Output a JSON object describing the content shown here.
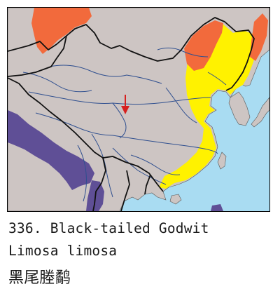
{
  "caption": {
    "number_name": "336. Black-tailed Godwit",
    "scientific_name": "Limosa limosa",
    "chinese_name": "黑尾塍鹬"
  },
  "colors": {
    "sea": "#a9dcf2",
    "land": "#cdc5c3",
    "breeding_range": "#f26a3c",
    "migration_range": "#fff200",
    "wintering_range": "#5f4f96",
    "rivers": "#2f4f8f",
    "borders": "#111111",
    "marker": "#d6201f"
  },
  "legend_semantics": [
    "breeding-range",
    "migration-range",
    "wintering-range",
    "record-marker"
  ]
}
